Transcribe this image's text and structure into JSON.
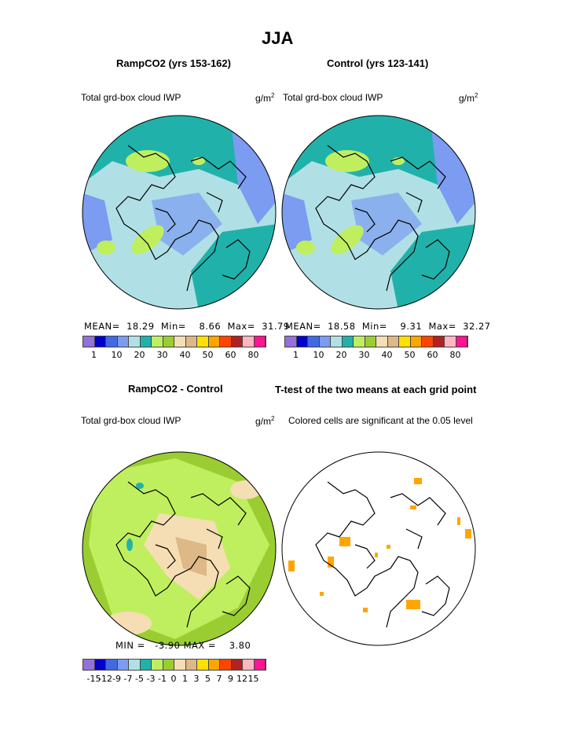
{
  "title": "JJA",
  "panels": {
    "ramp": {
      "title": "RampCO2 (yrs 153-162)",
      "variable": "Total grd-box cloud IWP",
      "units": "g/m",
      "units_sup": "2",
      "stats": {
        "mean_label": "MEAN=",
        "mean": "18.29",
        "min_label": "Min=",
        "min": "8.66",
        "max_label": "Max=",
        "max": "31.79"
      }
    },
    "control": {
      "title": "Control (yrs 123-141)",
      "variable": "Total grd-box cloud IWP",
      "units": "g/m",
      "units_sup": "2",
      "stats": {
        "mean_label": "MEAN=",
        "mean": "18.58",
        "min_label": "Min=",
        "min": "9.31",
        "max_label": "Max=",
        "max": "32.27"
      }
    },
    "diff": {
      "title": "RampCO2 - Control",
      "variable": "Total grd-box cloud IWP",
      "units": "g/m",
      "units_sup": "2",
      "stats": {
        "min_label": "MIN =",
        "min": "-3.90",
        "max_label": "MAX =",
        "max": "3.80"
      }
    },
    "ttest": {
      "title": "T-test of the two means at each grid point",
      "note": "Colored cells are significant at the 0.05 level",
      "color": "#FFA500"
    }
  },
  "colorbar_main": {
    "colors": [
      "#9370DB",
      "#0000CD",
      "#4169E1",
      "#7B9CF0",
      "#B0E0E6",
      "#20B2AA",
      "#BFEF5F",
      "#9ACD32",
      "#F5DEB3",
      "#DEB887",
      "#FFE000",
      "#FFA500",
      "#FF4500",
      "#B22222",
      "#FFB6C1",
      "#FF1493"
    ],
    "labels": [
      "1",
      "10",
      "20",
      "30",
      "40",
      "50",
      "60",
      "80"
    ]
  },
  "colorbar_diff": {
    "colors": [
      "#9370DB",
      "#0000CD",
      "#4169E1",
      "#7B9CF0",
      "#B0E0E6",
      "#20B2AA",
      "#BFEF5F",
      "#9ACD32",
      "#F5DEB3",
      "#DEB887",
      "#FFE000",
      "#FFA500",
      "#FF4500",
      "#B22222",
      "#FFB6C1",
      "#FF1493"
    ],
    "labels": [
      "-15",
      "-12",
      "-9",
      "-7",
      "-5",
      "-3",
      "-1",
      "0",
      "1",
      "3",
      "5",
      "7",
      "9",
      "12",
      "15"
    ]
  }
}
